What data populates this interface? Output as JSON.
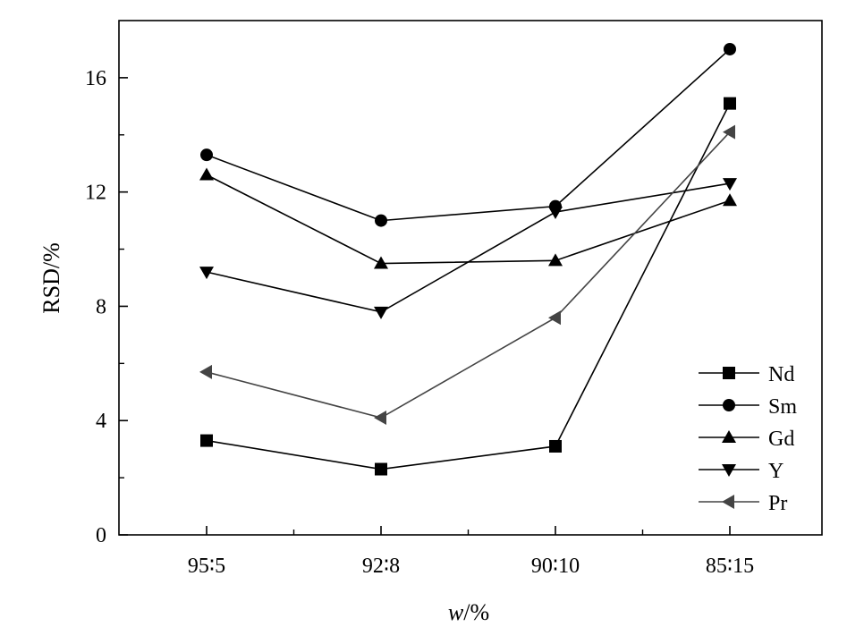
{
  "chart_data": {
    "type": "line",
    "categories": [
      "95∶5",
      "92∶8",
      "90∶10",
      "85∶15"
    ],
    "xlabel": "w/%",
    "ylabel": "RSD/%",
    "ylim": [
      0,
      18
    ],
    "yticks": [
      0,
      4,
      8,
      12,
      16
    ],
    "grid": false,
    "legend_position": "bottom-right",
    "series": [
      {
        "name": "Nd",
        "marker": "square",
        "color": "#000000",
        "values": [
          3.3,
          2.3,
          3.1,
          15.1
        ]
      },
      {
        "name": "Sm",
        "marker": "circle",
        "color": "#000000",
        "values": [
          13.3,
          11.0,
          11.5,
          17.0
        ]
      },
      {
        "name": "Gd",
        "marker": "triangle-up",
        "color": "#000000",
        "values": [
          12.6,
          9.5,
          9.6,
          11.7
        ]
      },
      {
        "name": "Y",
        "marker": "triangle-down",
        "color": "#000000",
        "values": [
          9.2,
          7.8,
          11.3,
          12.3
        ]
      },
      {
        "name": "Pr",
        "marker": "triangle-left",
        "color": "#444444",
        "values": [
          5.7,
          4.1,
          7.6,
          14.1
        ]
      }
    ]
  }
}
